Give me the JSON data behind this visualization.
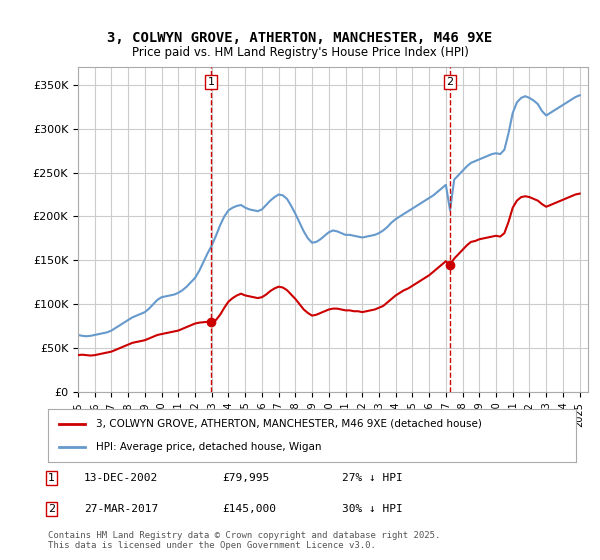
{
  "title": "3, COLWYN GROVE, ATHERTON, MANCHESTER, M46 9XE",
  "subtitle": "Price paid vs. HM Land Registry's House Price Index (HPI)",
  "ylabel": "",
  "xlabel": "",
  "ylim": [
    0,
    370000
  ],
  "yticks": [
    0,
    50000,
    100000,
    150000,
    200000,
    250000,
    300000,
    350000
  ],
  "ytick_labels": [
    "£0",
    "£50K",
    "£100K",
    "£150K",
    "£200K",
    "£250K",
    "£300K",
    "£350K"
  ],
  "xmin": 1995.0,
  "xmax": 2025.5,
  "sale1_x": 2002.96,
  "sale1_y": 79995,
  "sale1_label": "1",
  "sale1_date": "13-DEC-2002",
  "sale1_price": "£79,995",
  "sale1_hpi": "27% ↓ HPI",
  "sale2_x": 2017.24,
  "sale2_y": 145000,
  "sale2_label": "2",
  "sale2_date": "27-MAR-2017",
  "sale2_price": "£145,000",
  "sale2_hpi": "30% ↓ HPI",
  "line1_color": "#cc0000",
  "line2_color": "#6699cc",
  "marker_color": "#cc0000",
  "vline_color": "#cc0000",
  "background_color": "#ffffff",
  "grid_color": "#cccccc",
  "legend1_label": "3, COLWYN GROVE, ATHERTON, MANCHESTER, M46 9XE (detached house)",
  "legend2_label": "HPI: Average price, detached house, Wigan",
  "footer": "Contains HM Land Registry data © Crown copyright and database right 2025.\nThis data is licensed under the Open Government Licence v3.0.",
  "hpi_data_x": [
    1995.0,
    1995.25,
    1995.5,
    1995.75,
    1996.0,
    1996.25,
    1996.5,
    1996.75,
    1997.0,
    1997.25,
    1997.5,
    1997.75,
    1998.0,
    1998.25,
    1998.5,
    1998.75,
    1999.0,
    1999.25,
    1999.5,
    1999.75,
    2000.0,
    2000.25,
    2000.5,
    2000.75,
    2001.0,
    2001.25,
    2001.5,
    2001.75,
    2002.0,
    2002.25,
    2002.5,
    2002.75,
    2003.0,
    2003.25,
    2003.5,
    2003.75,
    2004.0,
    2004.25,
    2004.5,
    2004.75,
    2005.0,
    2005.25,
    2005.5,
    2005.75,
    2006.0,
    2006.25,
    2006.5,
    2006.75,
    2007.0,
    2007.25,
    2007.5,
    2007.75,
    2008.0,
    2008.25,
    2008.5,
    2008.75,
    2009.0,
    2009.25,
    2009.5,
    2009.75,
    2010.0,
    2010.25,
    2010.5,
    2010.75,
    2011.0,
    2011.25,
    2011.5,
    2011.75,
    2012.0,
    2012.25,
    2012.5,
    2012.75,
    2013.0,
    2013.25,
    2013.5,
    2013.75,
    2014.0,
    2014.25,
    2014.5,
    2014.75,
    2015.0,
    2015.25,
    2015.5,
    2015.75,
    2016.0,
    2016.25,
    2016.5,
    2016.75,
    2017.0,
    2017.25,
    2017.5,
    2017.75,
    2018.0,
    2018.25,
    2018.5,
    2018.75,
    2019.0,
    2019.25,
    2019.5,
    2019.75,
    2020.0,
    2020.25,
    2020.5,
    2020.75,
    2021.0,
    2021.25,
    2021.5,
    2021.75,
    2022.0,
    2022.25,
    2022.5,
    2022.75,
    2023.0,
    2023.25,
    2023.5,
    2023.75,
    2024.0,
    2024.25,
    2024.5,
    2024.75,
    2025.0
  ],
  "hpi_data_y": [
    65000,
    64000,
    63500,
    64000,
    65000,
    66000,
    67000,
    68000,
    70000,
    73000,
    76000,
    79000,
    82000,
    85000,
    87000,
    89000,
    91000,
    95000,
    100000,
    105000,
    108000,
    109000,
    110000,
    111000,
    113000,
    116000,
    120000,
    125000,
    130000,
    138000,
    148000,
    158000,
    167000,
    178000,
    190000,
    200000,
    207000,
    210000,
    212000,
    213000,
    210000,
    208000,
    207000,
    206000,
    208000,
    213000,
    218000,
    222000,
    225000,
    224000,
    220000,
    212000,
    203000,
    193000,
    183000,
    175000,
    170000,
    171000,
    174000,
    178000,
    182000,
    184000,
    183000,
    181000,
    179000,
    179000,
    178000,
    177000,
    176000,
    177000,
    178000,
    179000,
    181000,
    184000,
    188000,
    193000,
    197000,
    200000,
    203000,
    206000,
    209000,
    212000,
    215000,
    218000,
    221000,
    224000,
    228000,
    232000,
    236000,
    207000,
    242000,
    247000,
    252000,
    257000,
    261000,
    263000,
    265000,
    267000,
    269000,
    271000,
    272000,
    271000,
    276000,
    295000,
    318000,
    330000,
    335000,
    337000,
    335000,
    332000,
    328000,
    320000,
    315000,
    318000,
    321000,
    324000,
    327000,
    330000,
    333000,
    336000,
    338000
  ],
  "red_data_x": [
    1995.0,
    1995.25,
    1995.5,
    1995.75,
    1996.0,
    1996.25,
    1996.5,
    1996.75,
    1997.0,
    1997.25,
    1997.5,
    1997.75,
    1998.0,
    1998.25,
    1998.5,
    1998.75,
    1999.0,
    1999.25,
    1999.5,
    1999.75,
    2000.0,
    2000.25,
    2000.5,
    2000.75,
    2001.0,
    2001.25,
    2001.5,
    2001.75,
    2002.0,
    2002.25,
    2002.5,
    2002.75,
    2002.96,
    2003.25,
    2003.5,
    2003.75,
    2004.0,
    2004.25,
    2004.5,
    2004.75,
    2005.0,
    2005.25,
    2005.5,
    2005.75,
    2006.0,
    2006.25,
    2006.5,
    2006.75,
    2007.0,
    2007.25,
    2007.5,
    2007.75,
    2008.0,
    2008.25,
    2008.5,
    2008.75,
    2009.0,
    2009.25,
    2009.5,
    2009.75,
    2010.0,
    2010.25,
    2010.5,
    2010.75,
    2011.0,
    2011.25,
    2011.5,
    2011.75,
    2012.0,
    2012.25,
    2012.5,
    2012.75,
    2013.0,
    2013.25,
    2013.5,
    2013.75,
    2014.0,
    2014.25,
    2014.5,
    2014.75,
    2015.0,
    2015.25,
    2015.5,
    2015.75,
    2016.0,
    2016.25,
    2016.5,
    2016.75,
    2017.0,
    2017.24,
    2017.5,
    2017.75,
    2018.0,
    2018.25,
    2018.5,
    2018.75,
    2019.0,
    2019.25,
    2019.5,
    2019.75,
    2020.0,
    2020.25,
    2020.5,
    2020.75,
    2021.0,
    2021.25,
    2021.5,
    2021.75,
    2022.0,
    2022.25,
    2022.5,
    2022.75,
    2023.0,
    2023.25,
    2023.5,
    2023.75,
    2024.0,
    2024.25,
    2024.5,
    2024.75,
    2025.0
  ],
  "red_data_y": [
    42000,
    42500,
    42000,
    41500,
    42000,
    43000,
    44000,
    45000,
    46000,
    48000,
    50000,
    52000,
    54000,
    56000,
    57000,
    58000,
    59000,
    61000,
    63000,
    65000,
    66000,
    67000,
    68000,
    69000,
    70000,
    72000,
    74000,
    76000,
    78000,
    79000,
    79500,
    79995,
    79995,
    82000,
    88000,
    96000,
    103000,
    107000,
    110000,
    112000,
    110000,
    109000,
    108000,
    107000,
    108000,
    111000,
    115000,
    118000,
    120000,
    119000,
    116000,
    111000,
    106000,
    100000,
    94000,
    90000,
    87000,
    88000,
    90000,
    92000,
    94000,
    95000,
    95000,
    94000,
    93000,
    93000,
    92000,
    92000,
    91000,
    92000,
    93000,
    94000,
    96000,
    98000,
    102000,
    106000,
    110000,
    113000,
    116000,
    118000,
    121000,
    124000,
    127000,
    130000,
    133000,
    137000,
    141000,
    145000,
    149000,
    145000,
    152000,
    157000,
    162000,
    167000,
    171000,
    172000,
    174000,
    175000,
    176000,
    177000,
    178000,
    177000,
    181000,
    194000,
    210000,
    218000,
    222000,
    223000,
    222000,
    220000,
    218000,
    214000,
    211000,
    213000,
    215000,
    217000,
    219000,
    221000,
    223000,
    225000,
    226000
  ]
}
